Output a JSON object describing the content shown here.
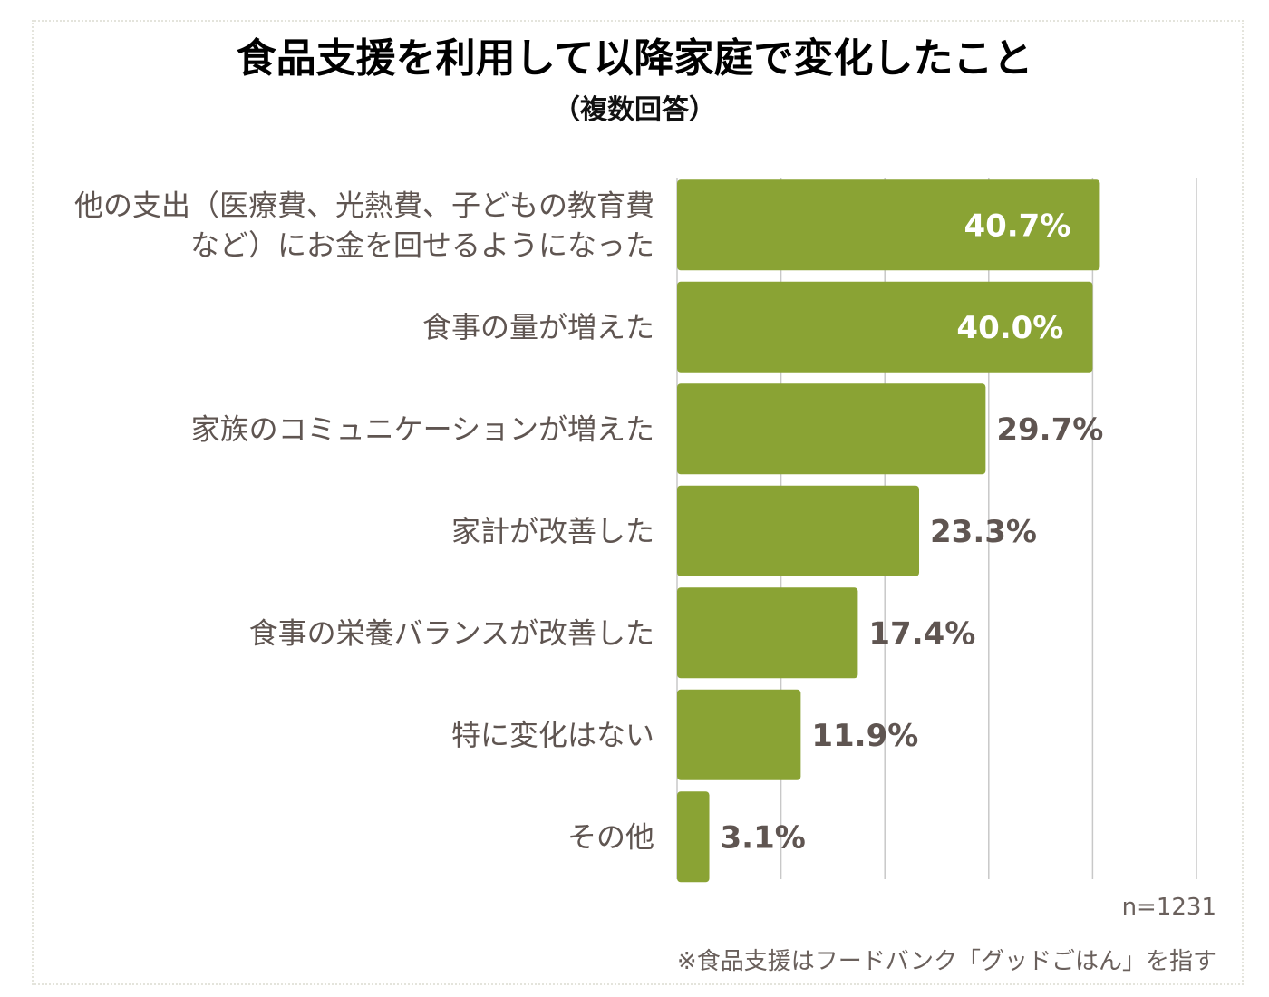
{
  "chart_data": {
    "type": "bar",
    "orientation": "horizontal",
    "title": "食品支援を利用して以降家庭で変化したこと",
    "subtitle": "（複数回答）",
    "categories": [
      "他の支出（医療費、光熱費、子どもの教育費\nなど）にお金を回せるようになった",
      "食事の量が増えた",
      "家族のコミュニケーションが増えた",
      "家計が改善した",
      "食事の栄養バランスが改善した",
      "特に変化はない",
      "その他"
    ],
    "values": [
      40.7,
      40.0,
      29.7,
      23.3,
      17.4,
      11.9,
      3.1
    ],
    "data_labels": [
      "40.7%",
      "40.0%",
      "29.7%",
      "23.3%",
      "17.4%",
      "11.9%",
      "3.1%"
    ],
    "xlim": [
      0,
      50
    ],
    "grid": true,
    "bar_color": "#8aa334",
    "label_color": "#5f5551"
  },
  "notes": {
    "sample_size": "n=1231",
    "footnote": "※食品支援はフードバンク「グッドごはん」を指す"
  }
}
